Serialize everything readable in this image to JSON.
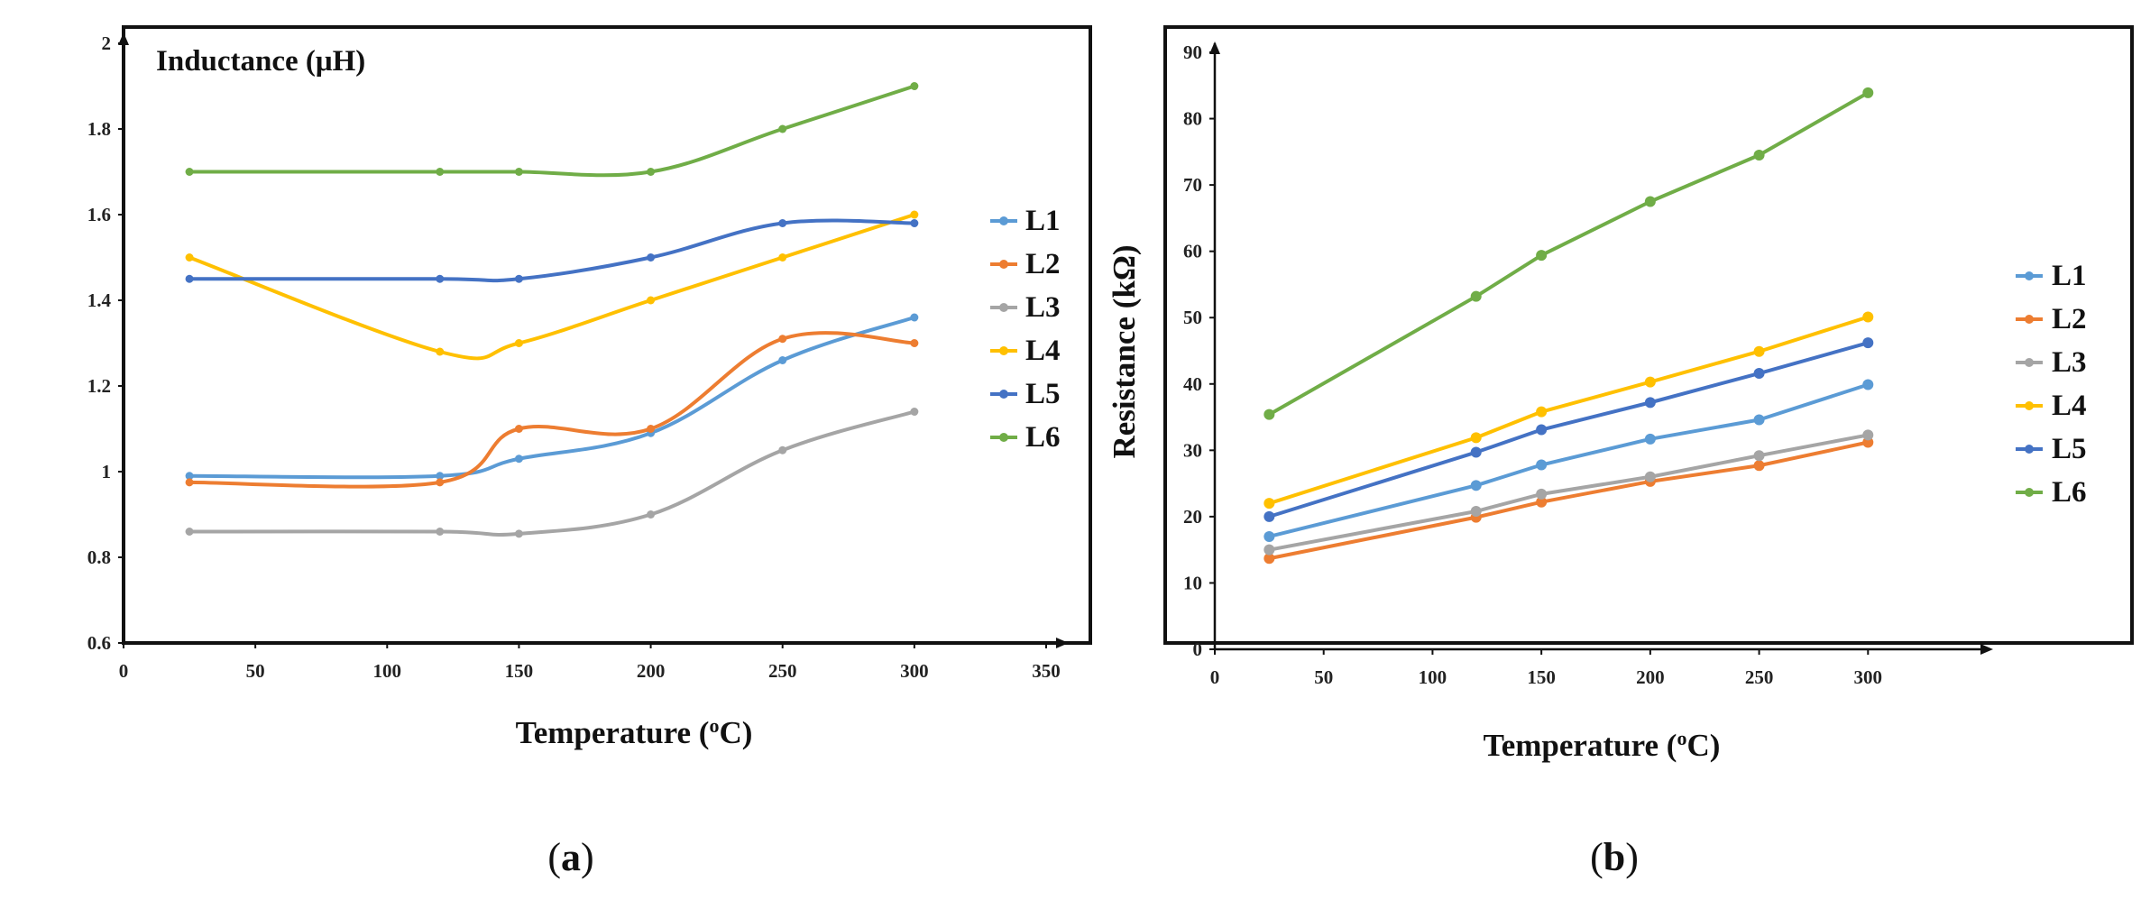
{
  "colors": {
    "L1": "#5b9bd5",
    "L2": "#ed7d31",
    "L3": "#a5a5a5",
    "L4": "#ffc000",
    "L5": "#4472c4",
    "L6": "#70ad47"
  },
  "chart_data": [
    {
      "type": "line",
      "smooth": true,
      "inner_label": "Inductance (μH)",
      "xlabel": "Temperature (oC)",
      "xlabel_parts": [
        "Temperature (",
        "o",
        "C)"
      ],
      "ylabel": "",
      "xlim": [
        0,
        350
      ],
      "ylim": [
        0.6,
        2
      ],
      "xticks": [
        "0",
        "50",
        "100",
        "150",
        "200",
        "250",
        "300",
        "350"
      ],
      "yticks": [
        "0.6",
        "0.8",
        "1",
        "1.2",
        "1.4",
        "1.6",
        "1.8",
        "2"
      ],
      "grid": false,
      "legend_position": "right",
      "x": [
        25,
        120,
        150,
        200,
        250,
        300
      ],
      "series": [
        {
          "name": "L1",
          "values": [
            0.99,
            0.99,
            1.03,
            1.09,
            1.26,
            1.36
          ]
        },
        {
          "name": "L2",
          "values": [
            0.975,
            0.975,
            1.1,
            1.1,
            1.31,
            1.3
          ]
        },
        {
          "name": "L3",
          "values": [
            0.86,
            0.86,
            0.855,
            0.9,
            1.05,
            1.14
          ]
        },
        {
          "name": "L4",
          "values": [
            1.5,
            1.28,
            1.3,
            1.4,
            1.5,
            1.6
          ]
        },
        {
          "name": "L5",
          "values": [
            1.45,
            1.45,
            1.45,
            1.5,
            1.58,
            1.58
          ]
        },
        {
          "name": "L6",
          "values": [
            1.7,
            1.7,
            1.7,
            1.7,
            1.8,
            1.9
          ]
        }
      ],
      "caption": "a"
    },
    {
      "type": "line",
      "smooth": false,
      "xlabel": "Temperature (oC)",
      "xlabel_parts": [
        "Temperature (",
        "o",
        "C)"
      ],
      "ylabel": "Resistance (kΩ)",
      "xlim": [
        0,
        350
      ],
      "ylim": [
        0,
        90
      ],
      "xticks": [
        "0",
        "50",
        "100",
        "150",
        "200",
        "250",
        "300"
      ],
      "yticks": [
        "0",
        "10",
        "20",
        "30",
        "40",
        "50",
        "60",
        "70",
        "80",
        "90"
      ],
      "grid": false,
      "legend_position": "right",
      "x": [
        25,
        120,
        150,
        200,
        250,
        300
      ],
      "series": [
        {
          "name": "L1",
          "values": [
            17.0,
            24.7,
            27.8,
            31.7,
            34.6,
            39.9
          ]
        },
        {
          "name": "L2",
          "values": [
            13.7,
            19.9,
            22.2,
            25.3,
            27.7,
            31.2
          ]
        },
        {
          "name": "L3",
          "values": [
            15.0,
            20.8,
            23.4,
            26.0,
            29.2,
            32.3
          ]
        },
        {
          "name": "L4",
          "values": [
            22.0,
            31.9,
            35.8,
            40.3,
            44.9,
            50.1
          ]
        },
        {
          "name": "L5",
          "values": [
            20.0,
            29.7,
            33.1,
            37.2,
            41.6,
            46.2
          ]
        },
        {
          "name": "L6",
          "values": [
            35.4,
            53.2,
            59.4,
            67.5,
            74.5,
            83.9
          ]
        }
      ],
      "caption": "b"
    }
  ]
}
